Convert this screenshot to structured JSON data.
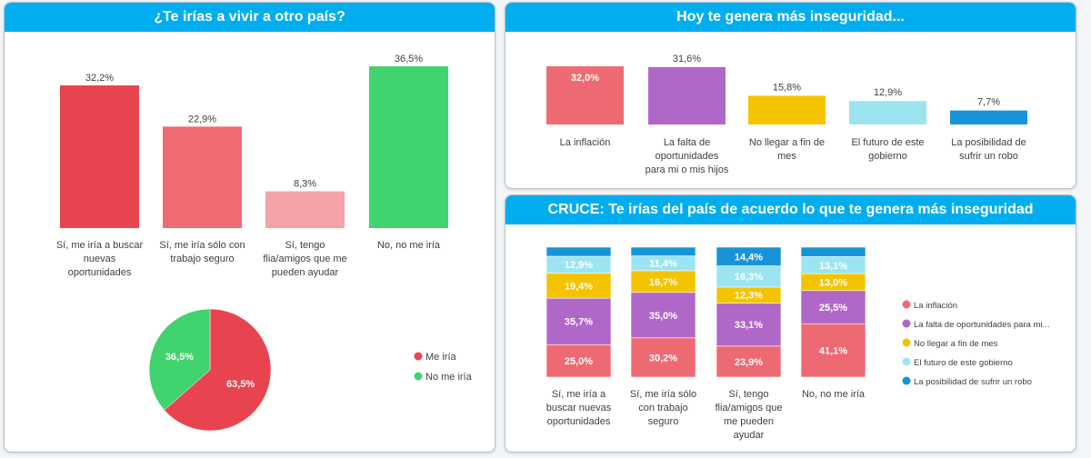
{
  "colors": {
    "header_bg": "#00adef",
    "red": "#e8444f",
    "salmon": "#ef6b72",
    "pink": "#f4a3a8",
    "green": "#41d36e",
    "inflacion": "#ee6a72",
    "falta": "#b068c8",
    "fin_mes": "#f5c400",
    "futuro": "#9de4f1",
    "robo": "#1893d8"
  },
  "chart_data": [
    {
      "id": "vivir_otro_pais_bar",
      "type": "bar",
      "title": "¿Te irías a vivir a otro país?",
      "categories": [
        [
          "Sí, me iría a buscar",
          "nuevas",
          "oportunidades"
        ],
        [
          "Sí, me iría sólo con",
          "trabajo seguro"
        ],
        [
          "Sí, tengo",
          "flia/amigos que me",
          "pueden ayudar"
        ],
        [
          "No, no me iría"
        ]
      ],
      "values": [
        32.2,
        22.9,
        8.3,
        36.5
      ],
      "labels": [
        "32,2%",
        "22,9%",
        "8,3%",
        "36,5%"
      ],
      "colors": [
        "#e8444f",
        "#ef6b72",
        "#f4a3a8",
        "#41d36e"
      ],
      "ylim": [
        0,
        36.5
      ]
    },
    {
      "id": "vivir_otro_pais_pie",
      "type": "pie",
      "slices": [
        {
          "name": "Me iría",
          "value": 63.5,
          "label": "63,5%",
          "color": "#e8444f"
        },
        {
          "name": "No me iría",
          "value": 36.5,
          "label": "36,5%",
          "color": "#41d36e"
        }
      ],
      "legend": "right"
    },
    {
      "id": "inseguridad_bar",
      "type": "bar",
      "title": "Hoy te genera más inseguridad...",
      "categories": [
        [
          "La inflación"
        ],
        [
          "La falta de",
          "oportunidades",
          "para mi o mis hijos"
        ],
        [
          "No llegar a fin de",
          "mes"
        ],
        [
          "El futuro de este",
          "gobierno"
        ],
        [
          "La posibilidad de",
          "sufrir un robo"
        ]
      ],
      "values": [
        32.0,
        31.6,
        15.8,
        12.9,
        7.7
      ],
      "labels": [
        "32,0%",
        "31,6%",
        "15,8%",
        "12,9%",
        "7,7%"
      ],
      "label_inside": [
        true,
        false,
        false,
        false,
        false
      ],
      "colors": [
        "#ee6a72",
        "#b068c8",
        "#f5c400",
        "#9de4f1",
        "#1893d8"
      ],
      "ylim": [
        0,
        32.0
      ]
    },
    {
      "id": "cruce_stacked",
      "type": "bar",
      "stacked": true,
      "title": "CRUCE: Te irías del país de acuerdo lo que te genera más inseguridad",
      "categories": [
        [
          "Sí, me iría a",
          "buscar nuevas",
          "oportunidades"
        ],
        [
          "Sí, me iría sólo",
          "con trabajo",
          "seguro"
        ],
        [
          "Sí, tengo",
          "flia/amigos que",
          "me pueden",
          "ayudar"
        ],
        [
          "No, no me iría"
        ]
      ],
      "series": [
        {
          "name": "La inflación",
          "color": "#ee6a72",
          "values": [
            25.0,
            30.2,
            23.9,
            41.1
          ],
          "labels": [
            "25,0%",
            "30,2%",
            "23,9%",
            "41,1%"
          ]
        },
        {
          "name": "La falta de oportunidades para mi...",
          "color": "#b068c8",
          "values": [
            35.7,
            35.0,
            33.1,
            25.5
          ],
          "labels": [
            "35,7%",
            "35,0%",
            "33,1%",
            "25,5%"
          ]
        },
        {
          "name": "No llegar a fin de mes",
          "color": "#f5c400",
          "values": [
            19.4,
            16.7,
            12.3,
            13.0
          ],
          "labels": [
            "19,4%",
            "16,7%",
            "12,3%",
            "13,0%"
          ]
        },
        {
          "name": "El futuro de este gobierno",
          "color": "#9de4f1",
          "values": [
            12.9,
            11.4,
            16.3,
            13.1
          ],
          "labels": [
            "12,9%",
            "11,4%",
            "16,3%",
            "13,1%"
          ]
        },
        {
          "name": "La posibilidad de sufrir un robo",
          "color": "#1893d8",
          "values": [
            7.0,
            6.7,
            14.4,
            7.3
          ],
          "labels": [
            "",
            "",
            "14,4%",
            ""
          ]
        }
      ],
      "ylim": [
        0,
        100
      ],
      "legend": "right"
    }
  ]
}
